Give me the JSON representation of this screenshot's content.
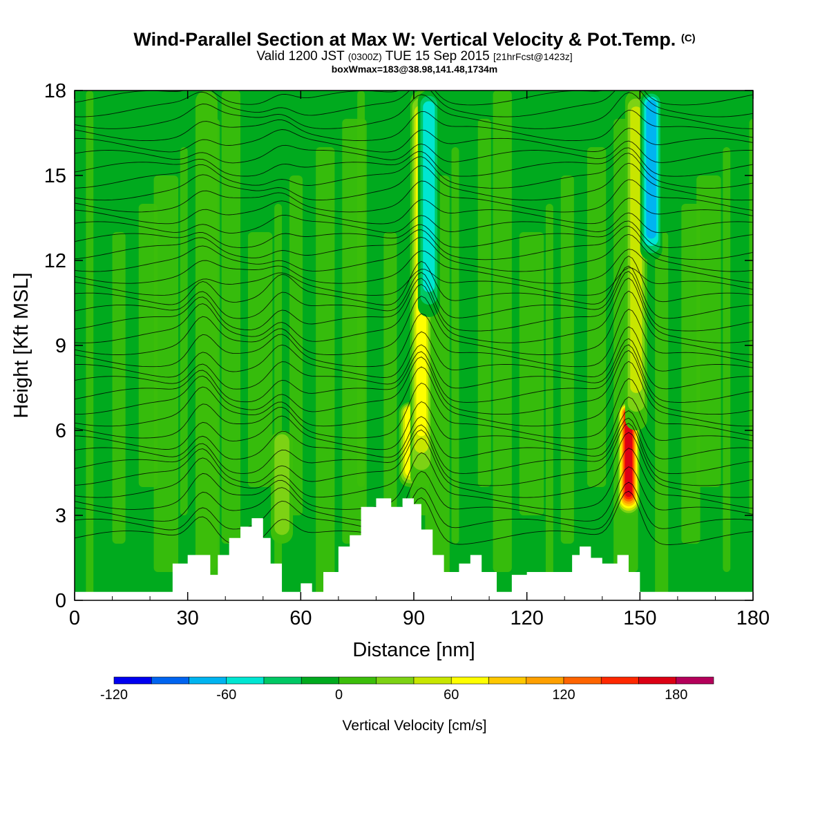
{
  "header": {
    "title_main": "Wind-Parallel Section at Max W: Vertical Velocity & Pot.Temp.",
    "title_mark": "(C)",
    "valid_prefix": "Valid 1200 JST",
    "valid_utc": "(0300Z)",
    "valid_date": "TUE 15 Sep 2015",
    "forecast": "[21hrFcst@1423z]",
    "box_info": "boxWmax=183@38.98,141.48,1734m"
  },
  "chart_data": {
    "type": "heatmap",
    "xlabel": "Distance [nm]",
    "ylabel": "Height [Kft MSL]",
    "xlim": [
      0,
      180
    ],
    "ylim": [
      0,
      18
    ],
    "xticks": [
      0,
      30,
      60,
      90,
      120,
      150,
      180
    ],
    "yticks": [
      0,
      3,
      6,
      9,
      12,
      15,
      18
    ],
    "colorbar": {
      "label": "Vertical Velocity [cm/s]",
      "ticks": [
        -120,
        -60,
        0,
        60,
        120,
        180
      ],
      "levels": [
        -120,
        -100,
        -80,
        -60,
        -40,
        -20,
        0,
        20,
        40,
        60,
        80,
        100,
        120,
        140,
        160,
        180,
        200
      ],
      "colors": [
        "#0000f0",
        "#0064f0",
        "#00b4f0",
        "#00e6d2",
        "#00c864",
        "#00aa1e",
        "#3cbe0a",
        "#7dd214",
        "#c8e600",
        "#ffff00",
        "#ffc800",
        "#ffa000",
        "#ff6400",
        "#ff2800",
        "#dc0014",
        "#b4005a",
        "#5a0096"
      ]
    },
    "updrafts": [
      {
        "x": 35,
        "z_bottom": 1,
        "z_top": 18,
        "w": 25
      },
      {
        "x": 55,
        "z_bottom": 2,
        "z_top": 6,
        "w": 55
      },
      {
        "x": 89,
        "z_bottom": 4,
        "z_top": 7,
        "w": 85
      },
      {
        "x": 92,
        "z_bottom": 4,
        "z_top": 18,
        "w": 95
      },
      {
        "x": 147,
        "z_bottom": 3,
        "z_top": 7,
        "w": 183
      },
      {
        "x": 149,
        "z_bottom": 6,
        "z_top": 18,
        "w": 65
      }
    ],
    "downdrafts": [
      {
        "x": 94,
        "z_bottom": 10,
        "z_top": 18,
        "w": -75
      },
      {
        "x": 153,
        "z_bottom": 12,
        "z_top": 18,
        "w": -95
      }
    ],
    "terrain_kft": [
      [
        0,
        0.3
      ],
      [
        23,
        0.3
      ],
      [
        26,
        1.3
      ],
      [
        30,
        1.6
      ],
      [
        33,
        1.6
      ],
      [
        36,
        0.9
      ],
      [
        38,
        1.6
      ],
      [
        41,
        2.2
      ],
      [
        44,
        2.6
      ],
      [
        47,
        2.9
      ],
      [
        50,
        2.2
      ],
      [
        52,
        1.3
      ],
      [
        55,
        0.3
      ],
      [
        60,
        0.6
      ],
      [
        63,
        0.3
      ],
      [
        66,
        1.0
      ],
      [
        70,
        1.9
      ],
      [
        73,
        2.3
      ],
      [
        76,
        3.3
      ],
      [
        80,
        3.6
      ],
      [
        84,
        3.3
      ],
      [
        87,
        3.6
      ],
      [
        90,
        3.4
      ],
      [
        92,
        2.5
      ],
      [
        95,
        1.6
      ],
      [
        98,
        1.0
      ],
      [
        102,
        1.3
      ],
      [
        105,
        1.6
      ],
      [
        108,
        1.0
      ],
      [
        112,
        0.3
      ],
      [
        116,
        0.9
      ],
      [
        120,
        1.0
      ],
      [
        128,
        1.0
      ],
      [
        132,
        1.6
      ],
      [
        134,
        1.9
      ],
      [
        137,
        1.5
      ],
      [
        140,
        1.3
      ],
      [
        144,
        1.6
      ],
      [
        147,
        1.0
      ],
      [
        150,
        0.3
      ],
      [
        155,
        0.3
      ],
      [
        180,
        0.3
      ]
    ],
    "theta_contours": {
      "count": 38,
      "base_kft": 2.2,
      "spacing_kft": 0.42
    }
  }
}
